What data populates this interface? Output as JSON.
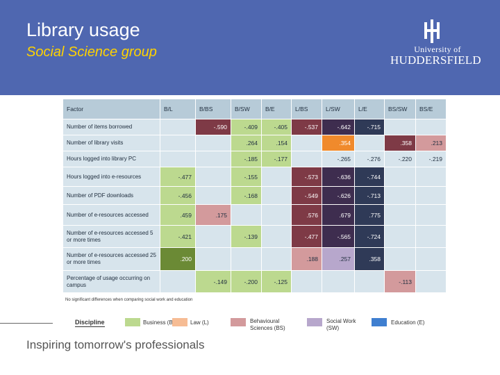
{
  "header": {
    "title": "Library usage",
    "subtitle": "Social Science group",
    "background_color": "#4f67b0",
    "logo": {
      "line1": "University of",
      "line2": "HUDDERSFIELD"
    }
  },
  "table": {
    "columns": [
      "Factor",
      "B/L",
      "B/BS",
      "B/SW",
      "B/E",
      "L/BS",
      "L/SW",
      "L/E",
      "BS/SW",
      "BS/E"
    ],
    "rows": [
      {
        "factor": "Number of items borrowed",
        "cells": [
          "",
          "-.590",
          "-.409",
          "-.405",
          "-.537",
          "-.642",
          "-.715",
          "",
          ""
        ]
      },
      {
        "factor": "Number of library visits",
        "cells": [
          "",
          "",
          ".264",
          ".154",
          "",
          ".354",
          "",
          ".358",
          ".213"
        ]
      },
      {
        "factor": "Hours logged into library PC",
        "cells": [
          "",
          "",
          "-.185",
          "-.177",
          "",
          "-.265",
          "-.276",
          "-.220",
          "-.219"
        ]
      },
      {
        "factor": "Hours logged into e-resources",
        "cells": [
          "-.477",
          "",
          "-.155",
          "",
          "-.573",
          "-.636",
          "-.744",
          "",
          ""
        ]
      },
      {
        "factor": "Number of PDF downloads",
        "cells": [
          "-.456",
          "",
          "-.168",
          "",
          "-.549",
          "-.626",
          "-.713",
          "",
          ""
        ]
      },
      {
        "factor": "Number of e-resources accessed",
        "cells": [
          ".459",
          ".175",
          "",
          "",
          ".576",
          ".679",
          ".775",
          "",
          ""
        ]
      },
      {
        "factor": "Number of e-resources accessed 5 or more times",
        "cells": [
          "-.421",
          "",
          "-.139",
          "",
          "-.477",
          "-.565",
          "-.724",
          "",
          ""
        ]
      },
      {
        "factor": "Number of e-resources accessed 25 or more times",
        "cells": [
          ".200",
          "",
          "",
          "",
          ".188",
          ".257",
          ".358",
          "",
          ""
        ]
      },
      {
        "factor": "Percentage of usage occurring on campus",
        "cells": [
          "",
          "-.149",
          "-.200",
          "-.125",
          "",
          "",
          "",
          "-.113",
          ""
        ]
      }
    ],
    "footnote": "No significant differences when comparing social work and education"
  },
  "legend": {
    "title": "Discipline",
    "items": [
      {
        "label": "Business (B)",
        "color": "#bcd98f"
      },
      {
        "label": "Law (L)",
        "color": "#f6bc94"
      },
      {
        "label": "Behavioural Sciences (BS)",
        "color": "#d39a9c"
      },
      {
        "label": "Social Work (SW)",
        "color": "#b7a7cc"
      },
      {
        "label": "Education (E)",
        "color": "#3f7fd0"
      }
    ]
  },
  "footer": {
    "tagline": "Inspiring tomorrow's professionals"
  }
}
